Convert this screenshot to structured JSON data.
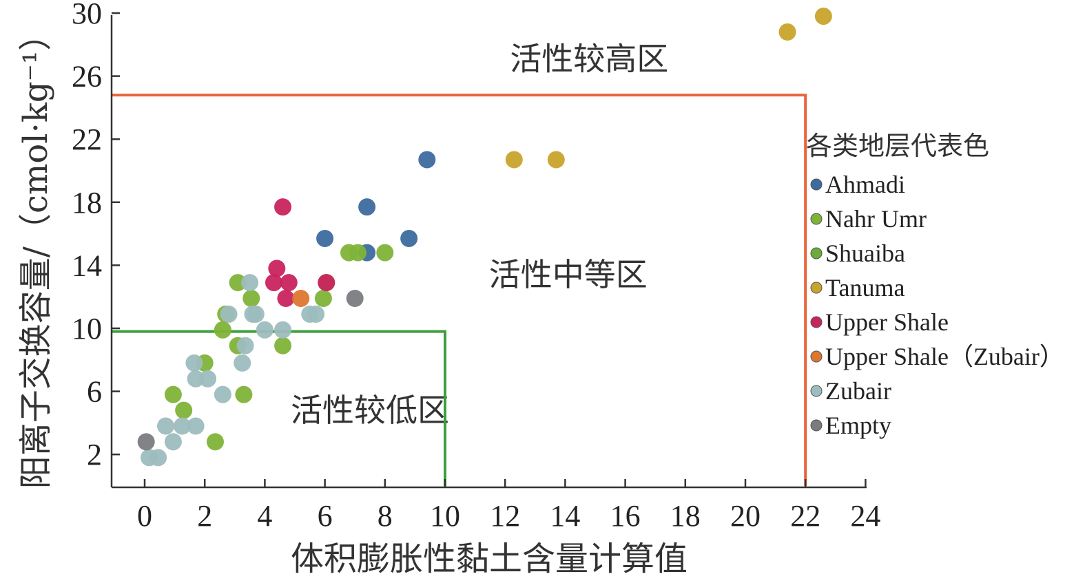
{
  "chart_data": {
    "type": "scatter",
    "xlabel": "体积膨胀性黏土含量计算值",
    "ylabel": "阳离子交换容量/（cmol·kg⁻¹）",
    "xlim": [
      -1.1,
      24
    ],
    "ylim": [
      0,
      30
    ],
    "x_ticks": [
      0,
      2,
      4,
      6,
      8,
      10,
      12,
      14,
      16,
      18,
      20,
      22,
      24
    ],
    "y_ticks": [
      2,
      6,
      10,
      14,
      18,
      22,
      26,
      30
    ],
    "grid": false,
    "legend_title": "各类地层代表色",
    "legend_position": "right",
    "regions": [
      {
        "label": "活性较高区",
        "label_x": 14.8,
        "label_y": 26.4
      },
      {
        "label": "活性中等区",
        "label_x": 14.1,
        "label_y": 12.7
      },
      {
        "label": "活性较低区",
        "label_x": 7.5,
        "label_y": 4.1
      }
    ],
    "boundaries": [
      {
        "name": "high-boundary",
        "color": "#e8643c",
        "points": [
          [
            -1.1,
            24.8
          ],
          [
            22,
            24.8
          ],
          [
            22,
            0
          ]
        ]
      },
      {
        "name": "low-boundary",
        "color": "#3ca03c",
        "points": [
          [
            -1.1,
            9.8
          ],
          [
            10,
            9.8
          ],
          [
            10,
            0
          ]
        ]
      }
    ],
    "series": [
      {
        "name": "Ahmadi",
        "color": "#3d6a9f",
        "points": [
          [
            9.4,
            20.7
          ],
          [
            7.4,
            17.7
          ],
          [
            6.0,
            15.7
          ],
          [
            8.8,
            15.7
          ],
          [
            7.4,
            14.8
          ]
        ]
      },
      {
        "name": "Nahr Umr",
        "color": "#7fb338",
        "points": [
          [
            0.95,
            5.8
          ],
          [
            1.3,
            4.8
          ],
          [
            2.0,
            7.8
          ],
          [
            2.35,
            2.8
          ],
          [
            2.6,
            9.9
          ],
          [
            2.7,
            10.9
          ],
          [
            3.1,
            8.9
          ],
          [
            3.1,
            12.9
          ],
          [
            3.3,
            5.8
          ],
          [
            3.55,
            11.9
          ],
          [
            4.6,
            8.9
          ],
          [
            5.95,
            11.9
          ],
          [
            6.05,
            12.9
          ],
          [
            6.8,
            14.8
          ],
          [
            7.1,
            14.8
          ],
          [
            8.0,
            14.8
          ]
        ]
      },
      {
        "name": "Shuaiba",
        "color": "#6dab3a",
        "points": []
      },
      {
        "name": "Tanuma",
        "color": "#c9a42c",
        "points": [
          [
            12.3,
            20.7
          ],
          [
            13.7,
            20.7
          ],
          [
            21.4,
            28.8
          ],
          [
            22.6,
            29.8
          ]
        ]
      },
      {
        "name": "Upper Shale",
        "color": "#c8245e",
        "points": [
          [
            4.6,
            17.7
          ],
          [
            4.4,
            13.8
          ],
          [
            4.3,
            12.9
          ],
          [
            4.8,
            12.9
          ],
          [
            4.7,
            11.9
          ],
          [
            6.05,
            12.9
          ]
        ]
      },
      {
        "name": "Upper Shale（Zubair）",
        "color": "#dd7730",
        "points": [
          [
            5.2,
            11.9
          ]
        ]
      },
      {
        "name": "Zubair",
        "color": "#9dbcbe",
        "points": [
          [
            0.15,
            1.8
          ],
          [
            0.45,
            1.8
          ],
          [
            0.7,
            3.8
          ],
          [
            0.95,
            2.8
          ],
          [
            1.25,
            3.8
          ],
          [
            1.7,
            3.8
          ],
          [
            1.65,
            7.8
          ],
          [
            1.7,
            6.8
          ],
          [
            2.1,
            6.8
          ],
          [
            2.6,
            5.8
          ],
          [
            2.8,
            10.9
          ],
          [
            3.25,
            7.8
          ],
          [
            3.35,
            8.9
          ],
          [
            3.5,
            12.9
          ],
          [
            3.6,
            10.9
          ],
          [
            3.7,
            10.9
          ],
          [
            4.0,
            9.9
          ],
          [
            4.6,
            9.9
          ],
          [
            5.5,
            10.9
          ],
          [
            5.7,
            10.9
          ]
        ]
      },
      {
        "name": "Empty",
        "color": "#7a7c80",
        "points": [
          [
            0.05,
            2.8
          ],
          [
            7.0,
            11.9
          ]
        ]
      }
    ]
  }
}
